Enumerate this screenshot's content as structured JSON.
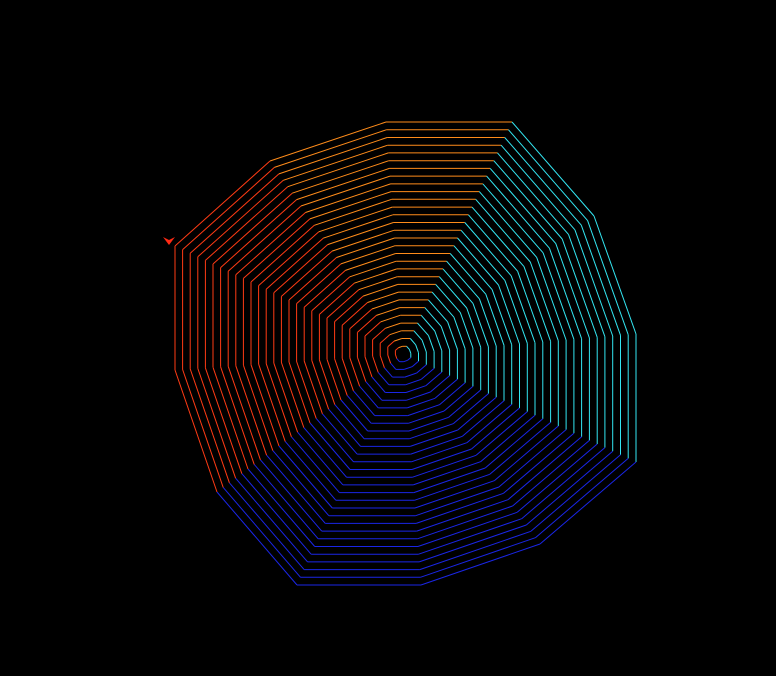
{
  "canvas": {
    "background": "#000000"
  },
  "spiral": {
    "sides_per_turn": 9,
    "turns": 30,
    "palette": [
      "#ff8c1a",
      "#33e6f2",
      "#1a26e6",
      "#ff3b14"
    ],
    "color_segments": [
      {
        "name": "orange",
        "color": "#ff8c1a"
      },
      {
        "name": "cyan",
        "color": "#33e6f2"
      },
      {
        "name": "blue",
        "color": "#1a26e6"
      },
      {
        "name": "red",
        "color": "#ff3b14"
      }
    ]
  },
  "turtle": {
    "shape": "arrow",
    "color": "#ff2a14",
    "heading": "down"
  }
}
